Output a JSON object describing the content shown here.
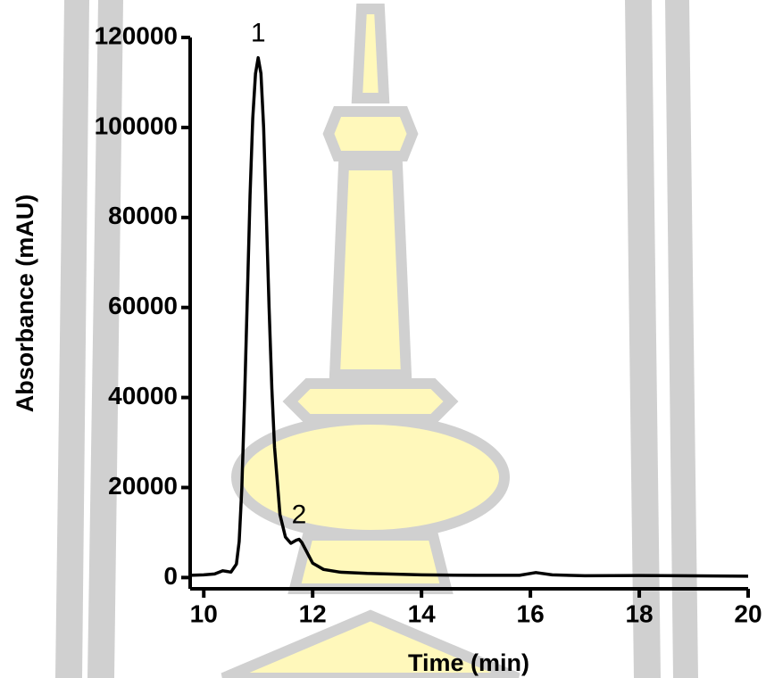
{
  "chart_data": {
    "type": "line",
    "xlabel": "Time (min)",
    "ylabel": "Absorbance (mAU)",
    "x": [
      9.75,
      10.0,
      10.2,
      10.35,
      10.5,
      10.6,
      10.65,
      10.7,
      10.75,
      10.8,
      10.85,
      10.9,
      10.95,
      11.0,
      11.05,
      11.1,
      11.15,
      11.2,
      11.25,
      11.3,
      11.4,
      11.5,
      11.6,
      11.7,
      11.75,
      11.8,
      11.9,
      12.0,
      12.2,
      12.5,
      13.0,
      14.0,
      15.0,
      15.8,
      16.1,
      16.4,
      17.0,
      18.0,
      20.0
    ],
    "values": [
      500,
      600,
      800,
      1500,
      1200,
      3000,
      8000,
      20000,
      40000,
      62000,
      85000,
      102000,
      112000,
      115500,
      112000,
      100000,
      80000,
      60000,
      42000,
      29000,
      14000,
      9000,
      7600,
      8300,
      8500,
      7800,
      5500,
      3200,
      1800,
      1200,
      900,
      600,
      500,
      500,
      1100,
      600,
      400,
      450,
      300
    ],
    "color": "#000000",
    "xlim": [
      9.75,
      20
    ],
    "xticks": [
      10,
      12,
      14,
      16,
      18,
      20
    ],
    "ylim": [
      -2500,
      120000
    ],
    "yticks": [
      0,
      20000,
      40000,
      60000,
      80000,
      100000,
      120000
    ],
    "annotations": [
      {
        "text": "1",
        "x": 11.0,
        "y": 115500
      },
      {
        "text": "2",
        "x": 11.75,
        "y": 8500
      }
    ]
  }
}
